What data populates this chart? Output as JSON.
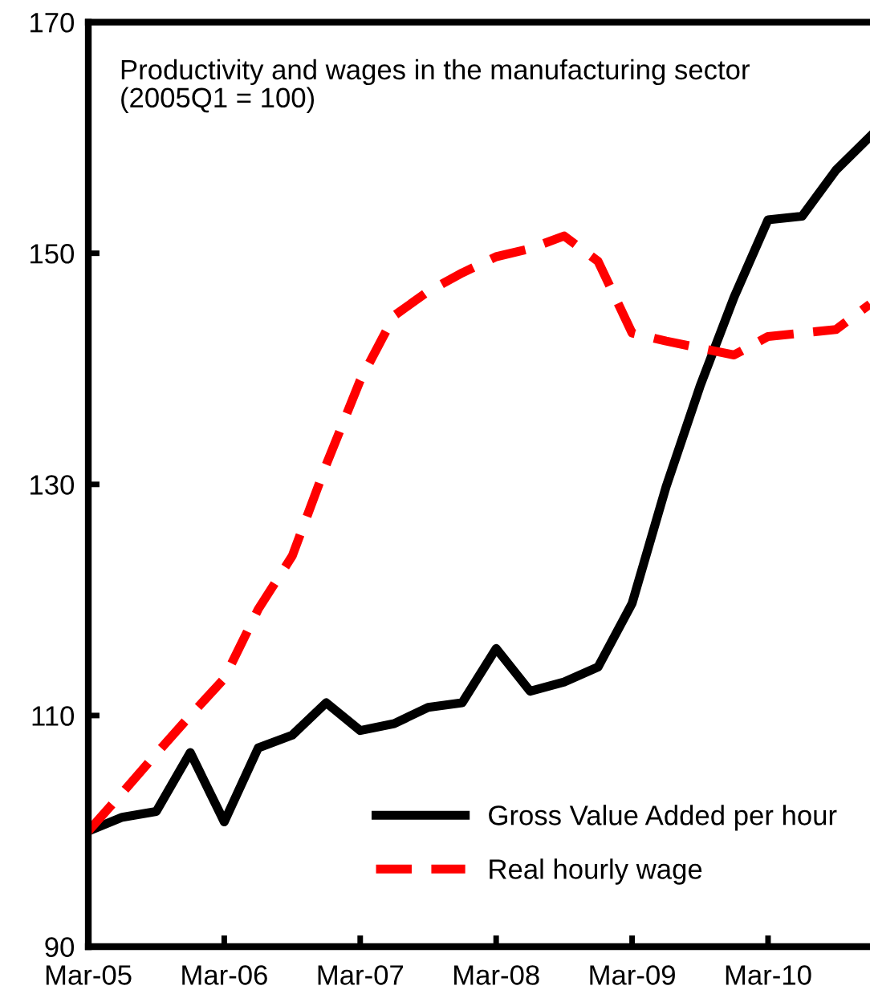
{
  "chart_data": {
    "type": "line",
    "title": "Productivity and wages in the manufacturing sector\n(2005Q1 = 100)",
    "categories": [
      "Mar-05",
      null,
      null,
      null,
      "Mar-06",
      null,
      null,
      null,
      "Mar-07",
      null,
      null,
      null,
      "Mar-08",
      null,
      null,
      null,
      "Mar-09",
      null,
      null,
      null,
      "Mar-10",
      null,
      null,
      null
    ],
    "series": [
      {
        "name": "Gross Value Added per hour",
        "color": "#000000",
        "line_style": "solid",
        "values": [
          100,
          101.2,
          101.7,
          106.8,
          100.8,
          107.2,
          108.3,
          111.1,
          108.7,
          109.3,
          110.7,
          111.1,
          115.8,
          112.1,
          112.9,
          114.2,
          119.7,
          129.8,
          138.5,
          146.2,
          152.9,
          153.2,
          157.2,
          160.1
        ]
      },
      {
        "name": "Real hourly wage",
        "color": "#ff0000",
        "line_style": "dashed",
        "values": [
          100,
          103.3,
          106.7,
          110.0,
          113.2,
          119.2,
          123.8,
          131.7,
          139.0,
          144.6,
          146.7,
          148.3,
          149.7,
          150.4,
          151.5,
          149.3,
          143.1,
          142.4,
          141.8,
          141.2,
          142.8,
          143.1,
          143.4,
          145.6
        ]
      }
    ],
    "ylim": [
      90,
      170
    ],
    "yticks": [
      90,
      110,
      130,
      150,
      170
    ],
    "grid": false,
    "legend": "bottom right",
    "marker": "none"
  }
}
